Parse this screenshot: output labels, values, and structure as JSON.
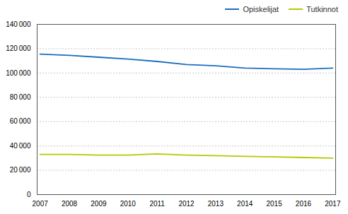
{
  "chart_data": {
    "type": "line",
    "x": [
      2007,
      2008,
      2009,
      2010,
      2011,
      2012,
      2013,
      2014,
      2015,
      2016,
      2017
    ],
    "series": [
      {
        "name": "Opiskelijat",
        "color": "#1a6ebd",
        "values": [
          115500,
          114500,
          113000,
          111500,
          109500,
          107000,
          106000,
          104000,
          103500,
          103000,
          104000
        ]
      },
      {
        "name": "Tutkinnot",
        "color": "#b5c900",
        "values": [
          33000,
          33000,
          32500,
          32500,
          33500,
          32500,
          32000,
          31500,
          31000,
          30500,
          30000
        ]
      }
    ],
    "xlim": [
      2006.9,
      2017.1
    ],
    "xticks": [
      2007,
      2008,
      2009,
      2010,
      2011,
      2012,
      2013,
      2014,
      2015,
      2016,
      2017
    ],
    "ylim": [
      0,
      140000
    ],
    "yticks": [
      0,
      {
        "value": 20000,
        "label": "20 000"
      },
      {
        "value": 40000,
        "label": "40 000"
      },
      {
        "value": 60000,
        "label": "60 000"
      },
      {
        "value": 80000,
        "label": "80 000"
      },
      {
        "value": 100000,
        "label": "100 000"
      },
      {
        "value": 120000,
        "label": "120 000"
      },
      {
        "value": 140000,
        "label": "140 000"
      }
    ],
    "grid": "y",
    "legend": "upper right"
  }
}
